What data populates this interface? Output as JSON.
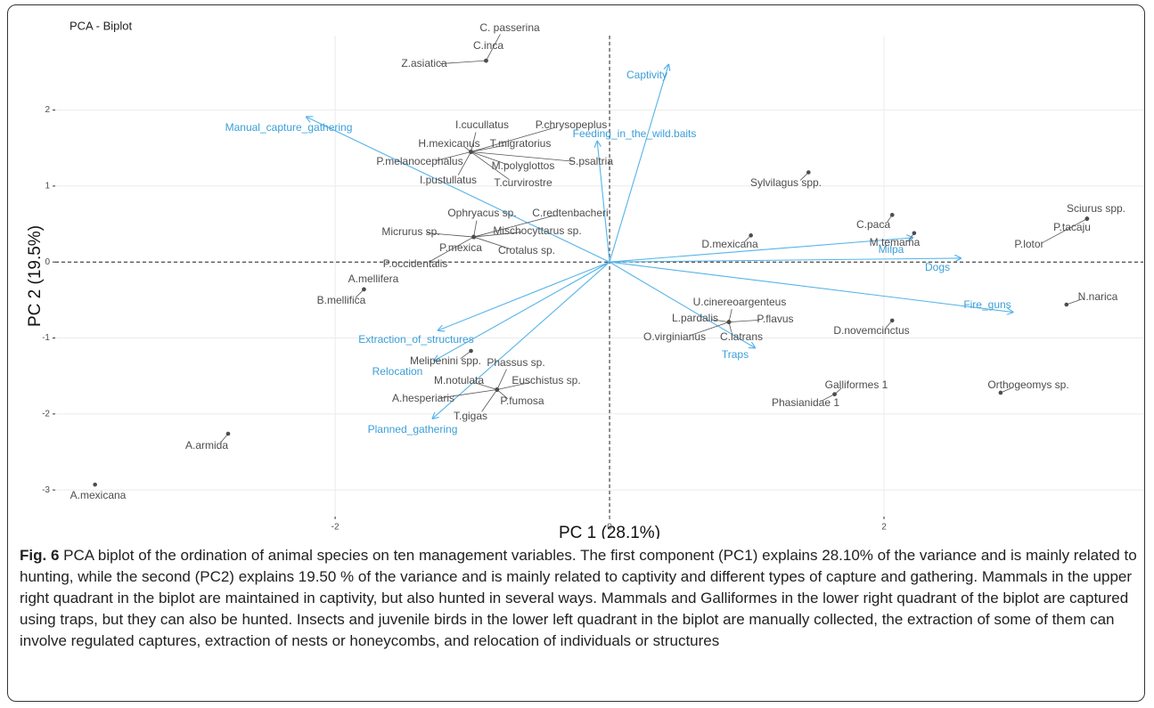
{
  "chart_data": {
    "type": "biplot",
    "title": "PCA - Biplot",
    "x_label": "PC 1 (28.1%)",
    "y_label": "PC 2 (19.5%)",
    "xlim": [
      -4.04,
      3.89
    ],
    "ylim": [
      -3.35,
      2.98
    ],
    "xticks": [
      -2,
      0,
      2
    ],
    "yticks": [
      -3,
      -2,
      -1,
      0,
      1,
      2
    ],
    "grid": true,
    "zero_lines": true,
    "point_color": "#4d4d4d",
    "arrow_color": "#56b4e9",
    "points": {
      "labels": [
        "C. passerina",
        "C.inca",
        "Z.asiatica",
        "I.cucullatus",
        "P.chrysopeplus",
        "H.mexicanus",
        "T.migratorius",
        "P.melanocephalus",
        "M.polyglottos",
        "S.psaltria",
        "I.pustullatus",
        "T.curvirostre",
        "Sylvilagus spp.",
        "Ophryacus sp.",
        "C.redtenbacheri",
        "Micrurus sp.",
        "Mischocyttarus sp.",
        "P.mexica",
        "Crotalus sp.",
        "P.occidentalis",
        "C.paca",
        "D.mexicana",
        "M.temama",
        "Sciurus spp.",
        "P.tacaju",
        "P.lotor",
        "A.mellifera",
        "B.mellifica",
        "N.narica",
        "U.cinereoargenteus",
        "L.pardalis",
        "P.flavus",
        "D.novemcinctus",
        "O.virginianus",
        "C.latrans",
        "Melipenini spp.",
        "Phassus sp.",
        "M.notulata",
        "Euschistus sp.",
        "A.hesperiaris",
        "P.fumosa",
        "T.gigas",
        "Galliformes 1",
        "Phasianidae 1",
        "Orthogeomys sp.",
        "A.armida",
        "A.mexicana"
      ],
      "x": [
        -0.9,
        -0.9,
        -0.9,
        -1.01,
        -1.01,
        -1.01,
        -1.01,
        -1.01,
        -1.01,
        -1.01,
        -1.01,
        -1.01,
        1.45,
        -0.99,
        -0.99,
        -0.99,
        -0.99,
        -0.99,
        -0.99,
        -0.99,
        2.06,
        1.03,
        2.22,
        3.48,
        3.48,
        3.48,
        -1.79,
        -1.79,
        3.33,
        0.87,
        0.87,
        0.87,
        2.06,
        0.87,
        0.87,
        -1.01,
        -0.82,
        -0.82,
        -0.82,
        -0.82,
        -0.82,
        -0.82,
        1.64,
        1.64,
        2.85,
        -2.78,
        -3.75
      ],
      "y": [
        2.65,
        2.65,
        2.65,
        1.45,
        1.45,
        1.45,
        1.45,
        1.45,
        1.45,
        1.45,
        1.45,
        1.45,
        1.18,
        0.33,
        0.33,
        0.33,
        0.33,
        0.33,
        0.33,
        0.33,
        0.62,
        0.35,
        0.38,
        0.57,
        0.57,
        0.57,
        -0.36,
        -0.36,
        -0.56,
        -0.79,
        -0.79,
        -0.79,
        -0.77,
        -0.79,
        -0.79,
        -1.17,
        -1.68,
        -1.68,
        -1.68,
        -1.68,
        -1.68,
        -1.68,
        -1.74,
        -1.74,
        -1.72,
        -2.26,
        -2.93
      ]
    },
    "arrows": {
      "labels": [
        "Captivity",
        "Manual_capture_gathering",
        "Feeding_in_the_wild.baits",
        "Milpa",
        "Dogs",
        "Fire_guns",
        "Traps",
        "Extraction_of_structures",
        "Relocation",
        "Planned_gathering"
      ],
      "x": [
        0.43,
        -2.21,
        -0.09,
        2.21,
        2.56,
        2.94,
        1.06,
        -1.25,
        -1.28,
        -1.29
      ],
      "y": [
        2.6,
        1.91,
        1.59,
        0.32,
        0.05,
        -0.66,
        -1.13,
        -0.9,
        -1.3,
        -2.06
      ]
    }
  },
  "caption": {
    "label": "Fig. 6",
    "text": "PCA biplot of the ordination of animal species on ten management variables. The first component (PC1) explains 28.10% of the variance and is mainly related to hunting, while the second (PC2) explains 19.50 % of the variance and is mainly related to captivity and different types of capture and gathering. Mammals in the upper right quadrant in the biplot are maintained in captivity, but also hunted in several ways. Mammals and Galliformes in the lower right quadrant of the biplot are captured using traps, but they can also be hunted. Insects and juvenile birds in the lower left quadrant in the biplot are manually collected, the extraction of some of them can involve regulated captures, extraction of nests or honeycombs, and relocation of individuals or structures"
  }
}
